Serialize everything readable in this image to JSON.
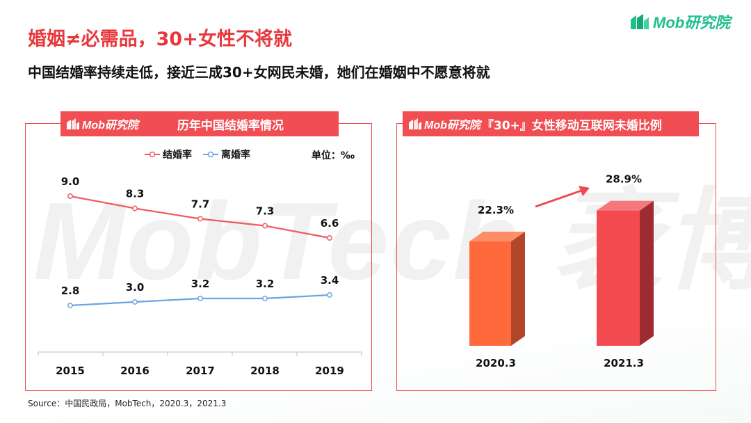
{
  "header": {
    "title": "婚姻≠必需品，30+女性不将就",
    "subtitle": "中国结婚率持续走低，接近三成30+女网民未婚，她们在婚姻中不愿意将就",
    "brand": "Mob研究院"
  },
  "watermark": "MobTech 袤博",
  "source": "Source：中国民政局，MobTech，2020.3，2021.3",
  "colors": {
    "accent": "#f04e53",
    "brand_green": "#1dbf8d",
    "marriage_line": "#ef5a5d",
    "divorce_line": "#6aa4e0",
    "bar_2020": "#ff6a3c",
    "bar_2021": "#f24a4f"
  },
  "panels": {
    "left": {
      "logo": "Mob研究院",
      "title": "历年中国结婚率情况"
    },
    "right": {
      "logo": "Mob研究院",
      "title": "『30+』女性移动互联网未婚比例"
    }
  },
  "chart_data": [
    {
      "type": "line",
      "title": "历年中国结婚率情况",
      "unit_label": "单位：‰",
      "x": [
        "2015",
        "2016",
        "2017",
        "2018",
        "2019"
      ],
      "series": [
        {
          "name": "结婚率",
          "values": [
            9.0,
            8.3,
            7.7,
            7.3,
            6.6
          ],
          "labels": [
            "9.0",
            "8.3",
            "7.7",
            "7.3",
            "6.6"
          ]
        },
        {
          "name": "离婚率",
          "values": [
            2.8,
            3.0,
            3.2,
            3.2,
            3.4
          ],
          "labels": [
            "2.8",
            "3.0",
            "3.2",
            "3.2",
            "3.4"
          ]
        }
      ],
      "legend_position": "top",
      "grid": false
    },
    {
      "type": "bar",
      "title": "『30+』女性移动互联网未婚比例",
      "categories": [
        "2020.3",
        "2021.3"
      ],
      "values": [
        22.3,
        28.9
      ],
      "labels": [
        "22.3%",
        "28.9%"
      ],
      "style": "3d",
      "annotation": "upward-trend-arrow"
    }
  ]
}
